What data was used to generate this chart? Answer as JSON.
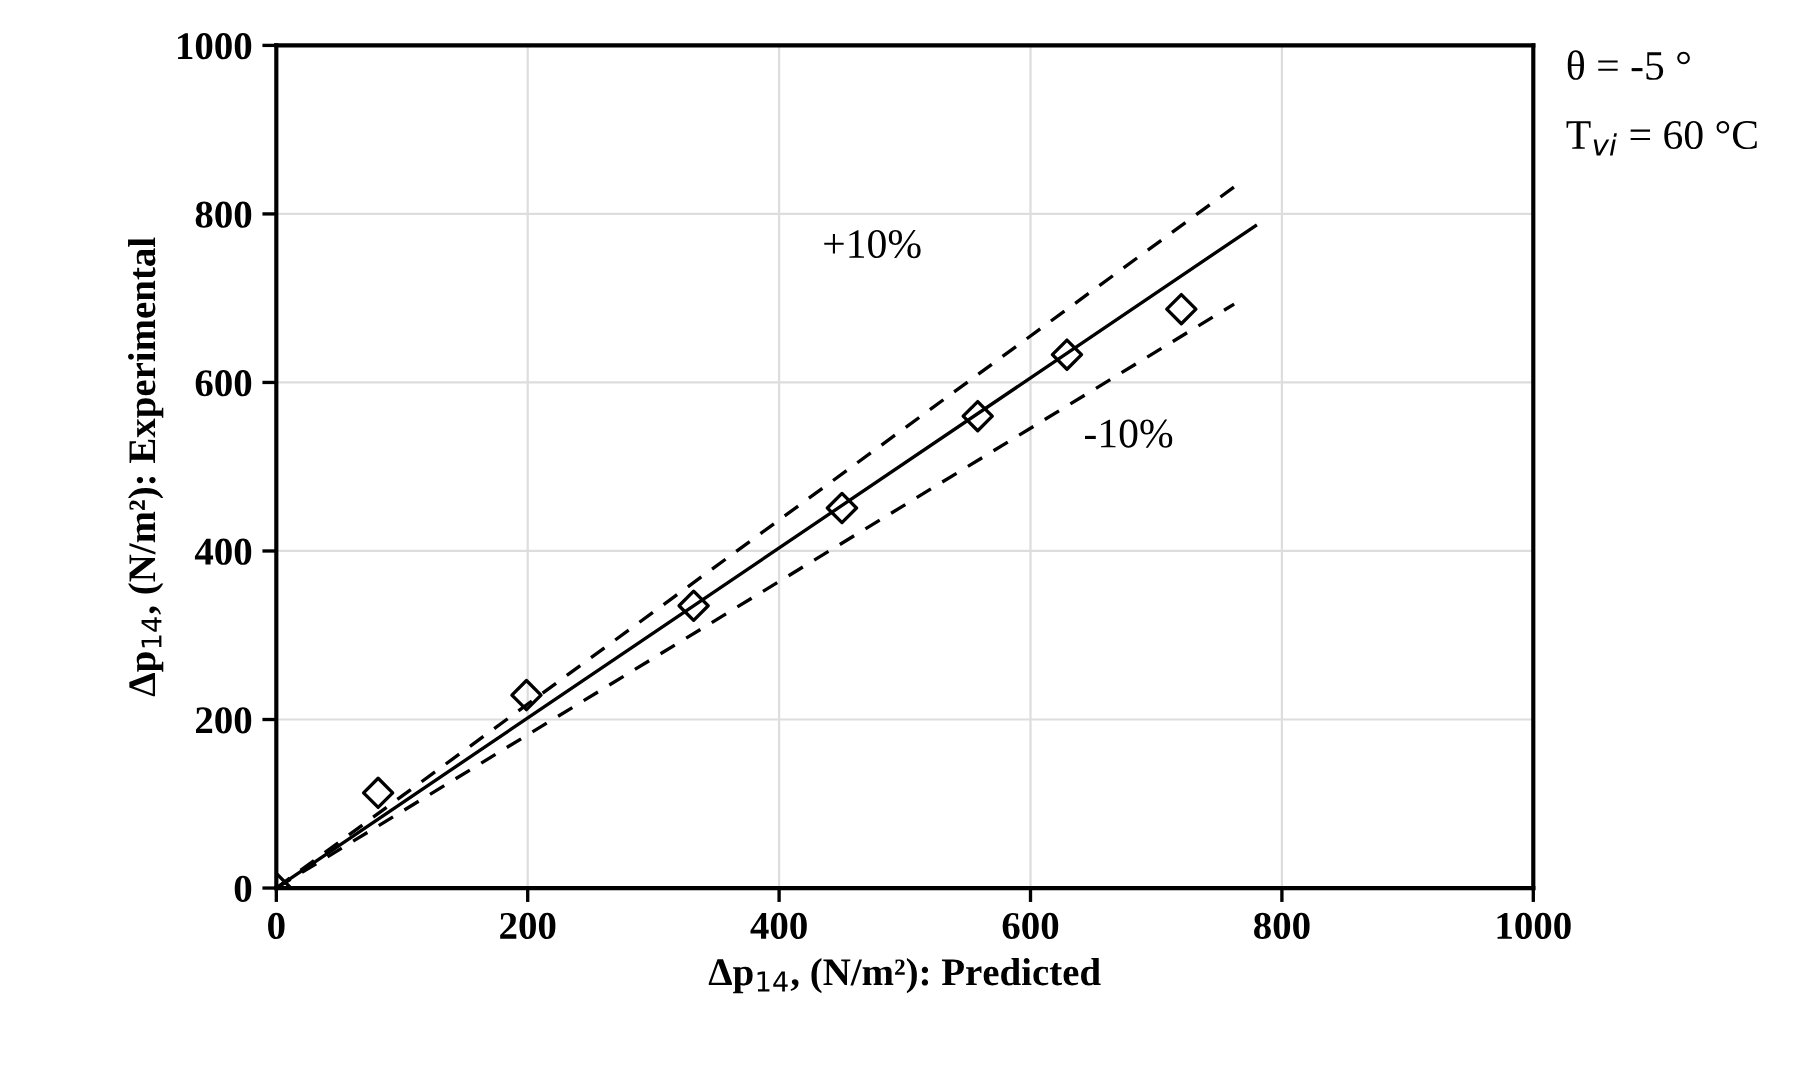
{
  "chart_data": {
    "type": "scatter",
    "xlabel": "Δp$_{14}$, (N/m²): Predicted",
    "ylabel": "Δp$_{14}$, (N/m²): Experimental",
    "series": [
      {
        "color": "#000000",
        "marker": "diamond",
        "x": [
          0,
          81,
          199,
          332,
          450,
          558,
          629,
          720
        ],
        "values": [
          0,
          113,
          229,
          335,
          451,
          560,
          633,
          687
        ]
      },
      {
        "type": "line",
        "color": "#000000",
        "marker": "none",
        "line_style": "solid",
        "x": [
          0,
          779
        ],
        "values": [
          0,
          786
        ]
      },
      {
        "type": "line",
        "color": "#000000",
        "marker": "none",
        "line_style": "dashed",
        "x": [
          0,
          762
        ],
        "values": [
          0,
          832
        ]
      },
      {
        "type": "line",
        "color": "#000000",
        "marker": "none",
        "line_style": "dashed",
        "x": [
          0,
          762
        ],
        "values": [
          0,
          693
        ]
      }
    ],
    "xlim": [
      0,
      1000
    ],
    "ylim": [
      0,
      1000
    ],
    "xticks": [
      0,
      200,
      400,
      600,
      800,
      1000
    ],
    "yticks": [
      0,
      200,
      400,
      600,
      800,
      1000
    ],
    "grid": true,
    "annotations": [
      "+10%",
      "-10%",
      "θ = -5 °",
      "T$_{vi}$ = 60 °C"
    ]
  }
}
